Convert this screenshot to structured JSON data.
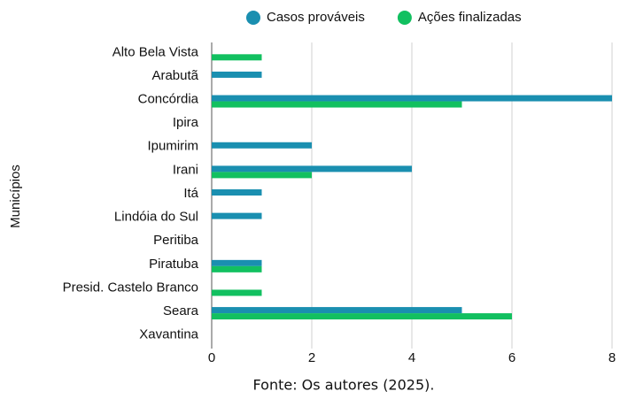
{
  "chart_data": {
    "type": "hbar",
    "y_label": "Municípios",
    "caption": "Fonte: Os autores (2025).",
    "categories": [
      "Alto Bela Vista",
      "Arabutã",
      "Concórdia",
      "Ipira",
      "Ipumirim",
      "Irani",
      "Itá",
      "Lindóia do Sul",
      "Peritiba",
      "Piratuba",
      "Presid. Castelo Branco",
      "Seara",
      "Xavantina"
    ],
    "series": [
      {
        "name": "Casos prováveis",
        "color": "#1a8fb0",
        "values": [
          0,
          1,
          8,
          0,
          2,
          4,
          1,
          1,
          0,
          1,
          0,
          5,
          0
        ]
      },
      {
        "name": "Ações finalizadas",
        "color": "#12c060",
        "values": [
          1,
          0,
          5,
          0,
          0,
          2,
          0,
          0,
          0,
          1,
          1,
          6,
          0
        ]
      }
    ],
    "xlim": [
      0,
      8
    ],
    "xticks": [
      0,
      2,
      4,
      6,
      8
    ],
    "grid": true,
    "legend": "top"
  }
}
